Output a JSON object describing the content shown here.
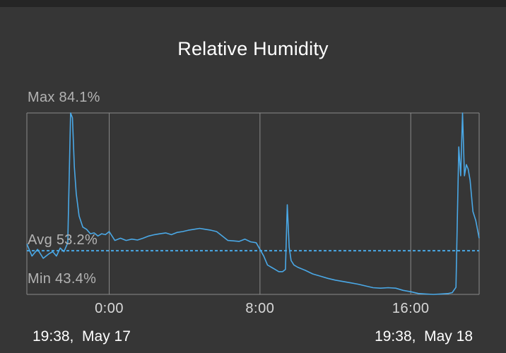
{
  "chart_data": {
    "type": "line",
    "title": "Relative Humidity",
    "unit": "%",
    "ylim": [
      43.4,
      84.1
    ],
    "xlim_hours": [
      -4.37,
      19.63
    ],
    "stats": {
      "max": {
        "label": "Max 84.1%",
        "value": 84.1
      },
      "avg": {
        "label": "Avg 53.2%",
        "value": 53.2
      },
      "min": {
        "label": "Min 43.4%",
        "value": 43.4
      }
    },
    "x_ticks": [
      {
        "label": "0:00",
        "hour": 0
      },
      {
        "label": "8:00",
        "hour": 8
      },
      {
        "label": "16:00",
        "hour": 16
      }
    ],
    "range_start": "19:38,  May 17",
    "range_end": "19:38,  May 18",
    "grid": true,
    "series": [
      {
        "color": "#4aa8e6",
        "x": [
          -4.37,
          -4.1,
          -3.8,
          -3.5,
          -3.2,
          -3.0,
          -2.8,
          -2.6,
          -2.4,
          -2.2,
          -2.05,
          -1.95,
          -1.85,
          -1.75,
          -1.6,
          -1.4,
          -1.2,
          -1.0,
          -0.8,
          -0.6,
          -0.4,
          -0.2,
          0.0,
          0.3,
          0.6,
          0.9,
          1.2,
          1.5,
          1.8,
          2.1,
          2.4,
          2.7,
          3.0,
          3.3,
          3.6,
          3.9,
          4.2,
          4.5,
          4.8,
          5.1,
          5.4,
          5.7,
          6.0,
          6.3,
          6.6,
          6.9,
          7.2,
          7.5,
          7.8,
          8.0,
          8.2,
          8.4,
          8.6,
          8.8,
          9.0,
          9.2,
          9.35,
          9.45,
          9.55,
          9.65,
          9.8,
          10.0,
          10.4,
          10.8,
          11.2,
          11.6,
          12.0,
          12.4,
          12.8,
          13.2,
          13.6,
          14.0,
          14.4,
          14.8,
          15.2,
          15.6,
          16.0,
          16.4,
          16.8,
          17.2,
          17.6,
          18.0,
          18.2,
          18.4,
          18.55,
          18.65,
          18.75,
          18.85,
          18.95,
          19.05,
          19.15,
          19.3,
          19.45,
          19.63
        ],
        "y": [
          54.7,
          52.0,
          53.5,
          51.5,
          52.5,
          53.0,
          52.0,
          53.8,
          53.0,
          55.0,
          84.1,
          83.0,
          72.0,
          66.0,
          61.0,
          58.5,
          58.0,
          57.0,
          57.2,
          56.5,
          57.0,
          56.8,
          57.5,
          55.5,
          56.0,
          55.5,
          55.8,
          55.6,
          56.0,
          56.5,
          56.8,
          57.0,
          57.2,
          56.8,
          57.3,
          57.5,
          57.8,
          58.0,
          58.2,
          58.0,
          57.8,
          57.5,
          56.5,
          55.5,
          55.4,
          55.3,
          55.8,
          55.2,
          55.0,
          53.5,
          52.0,
          50.0,
          49.5,
          49.0,
          48.5,
          48.5,
          49.0,
          63.5,
          54.0,
          51.0,
          50.0,
          49.5,
          48.8,
          48.0,
          47.5,
          47.0,
          46.6,
          46.3,
          46.0,
          45.7,
          45.3,
          44.9,
          44.8,
          44.9,
          44.8,
          44.3,
          44.0,
          43.6,
          43.5,
          43.4,
          43.5,
          43.6,
          43.8,
          45.0,
          76.5,
          70.0,
          84.1,
          70.0,
          72.5,
          71.5,
          69.0,
          62.0,
          60.0,
          56.0
        ]
      }
    ]
  }
}
